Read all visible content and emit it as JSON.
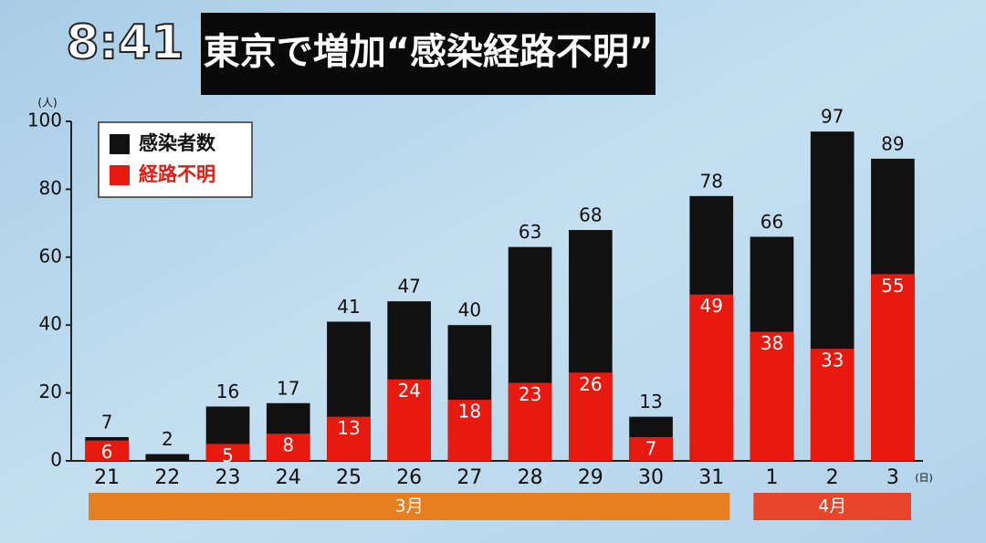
{
  "chart_data": {
    "type": "bar",
    "time": "8:41",
    "title": "東京で増加“感染経路不明”",
    "y_unit": "(人)",
    "x_unit": "(日)",
    "categories": [
      "21",
      "22",
      "23",
      "24",
      "25",
      "26",
      "27",
      "28",
      "29",
      "30",
      "31",
      "1",
      "2",
      "3"
    ],
    "month_labels": [
      "3月",
      "4月"
    ],
    "series": [
      {
        "name": "感染者数",
        "color": "#111111",
        "values": [
          7,
          2,
          16,
          17,
          41,
          47,
          40,
          63,
          68,
          13,
          78,
          66,
          97,
          89
        ]
      },
      {
        "name": "経路不明",
        "color": "#e8190f",
        "values": [
          6,
          null,
          5,
          8,
          13,
          24,
          18,
          23,
          26,
          7,
          49,
          38,
          33,
          55
        ]
      }
    ],
    "ylim": [
      0,
      100
    ],
    "yticks": [
      0,
      20,
      40,
      60,
      80,
      100
    ]
  }
}
